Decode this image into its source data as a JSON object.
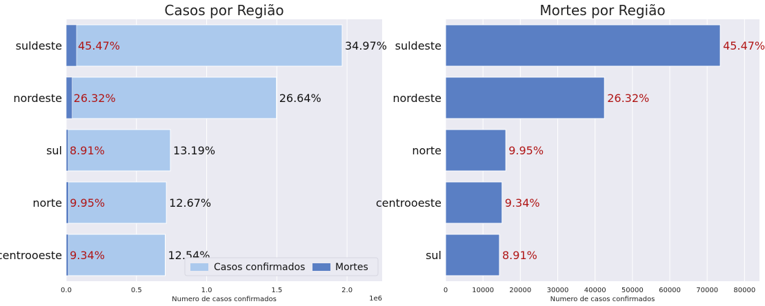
{
  "colors": {
    "axes_bg": "#eaeaf2",
    "grid": "#ffffff",
    "cases": "#abc9ed",
    "deaths": "#5a7fc4",
    "pct_red": "#b01515",
    "pct_black": "#111111"
  },
  "chart_data": [
    {
      "type": "bar",
      "orientation": "horizontal",
      "title": "Casos por Região",
      "xlabel": "Numero de casos confirmados",
      "x_offset_label": "1e6",
      "xlim": [
        0,
        2.25
      ],
      "x_ticks": [
        0.0,
        0.5,
        1.0,
        1.5,
        2.0
      ],
      "x_tick_labels": [
        "0.0",
        "0.5",
        "1.0",
        "1.5",
        "2.0"
      ],
      "categories": [
        "suldeste",
        "nordeste",
        "sul",
        "norte",
        "centrooeste"
      ],
      "series": [
        {
          "name": "Casos confirmados",
          "values": [
            1.965,
            1.497,
            0.742,
            0.713,
            0.705
          ],
          "labels": [
            "34.97%",
            "26.64%",
            "13.19%",
            "12.67%",
            "12.54%"
          ]
        },
        {
          "name": "Mortes",
          "values": [
            0.0735,
            0.0425,
            0.0144,
            0.0161,
            0.0151
          ],
          "labels": [
            "45.47%",
            "26.32%",
            "8.91%",
            "9.95%",
            "9.34%"
          ]
        }
      ],
      "legend": {
        "position": "lower-right",
        "entries": [
          "Casos confirmados",
          "Mortes"
        ]
      },
      "grid": true
    },
    {
      "type": "bar",
      "orientation": "horizontal",
      "title": "Mortes por Região",
      "xlabel": "Numero de casos confirmados",
      "xlim": [
        0,
        84000
      ],
      "x_ticks": [
        0,
        10000,
        20000,
        30000,
        40000,
        50000,
        60000,
        70000,
        80000
      ],
      "x_tick_labels": [
        "0",
        "10000",
        "20000",
        "30000",
        "40000",
        "50000",
        "60000",
        "70000",
        "80000"
      ],
      "categories": [
        "suldeste",
        "nordeste",
        "norte",
        "centrooeste",
        "sul"
      ],
      "series": [
        {
          "name": "Mortes",
          "values": [
            73500,
            42500,
            16100,
            15100,
            14400
          ],
          "labels": [
            "45.47%",
            "26.32%",
            "9.95%",
            "9.34%",
            "8.91%"
          ]
        }
      ],
      "grid": true
    }
  ]
}
